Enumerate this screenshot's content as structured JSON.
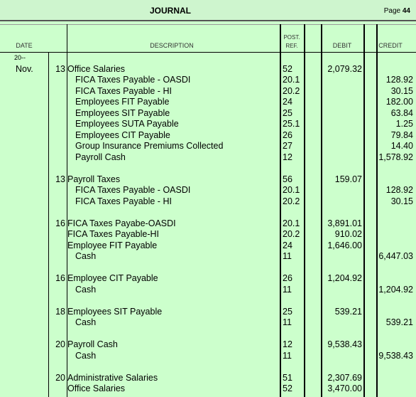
{
  "header": {
    "title": "JOURNAL",
    "page_label": "Page",
    "page_number": "44"
  },
  "columns": {
    "date": "DATE",
    "description": "DESCRIPTION",
    "post_ref_1": "POST.",
    "post_ref_2": "REF.",
    "debit": "DEBIT",
    "credit": "CREDIT"
  },
  "rows": [
    {
      "month": "20--",
      "day": "",
      "desc": "",
      "ref": "",
      "debit": "",
      "credit": ""
    },
    {
      "month": "Nov.",
      "day": "13",
      "desc": "Office Salaries",
      "ref": "52",
      "debit": "2,079.32",
      "credit": ""
    },
    {
      "month": "",
      "day": "",
      "desc": "FICA Taxes Payable - OASDI",
      "ref": "20.1",
      "debit": "",
      "credit": "128.92"
    },
    {
      "month": "",
      "day": "",
      "desc": "FICA Taxes Payable - HI",
      "ref": "20.2",
      "debit": "",
      "credit": "30.15"
    },
    {
      "month": "",
      "day": "",
      "desc": "Employees FIT Payable",
      "ref": "24",
      "debit": "",
      "credit": "182.00"
    },
    {
      "month": "",
      "day": "",
      "desc": "Employees SIT Payable",
      "ref": "25",
      "debit": "",
      "credit": "63.84"
    },
    {
      "month": "",
      "day": "",
      "desc": "Employees SUTA Payable",
      "ref": "25.1",
      "debit": "",
      "credit": "1.25"
    },
    {
      "month": "",
      "day": "",
      "desc": "Employees CIT Payable",
      "ref": "26",
      "debit": "",
      "credit": "79.84"
    },
    {
      "month": "",
      "day": "",
      "desc": "Group Insurance Premiums Collected",
      "ref": "27",
      "debit": "",
      "credit": "14.40"
    },
    {
      "month": "",
      "day": "",
      "desc": "Payroll Cash",
      "ref": "12",
      "debit": "",
      "credit": "1,578.92"
    },
    {
      "month": "",
      "day": "",
      "desc": "",
      "ref": "",
      "debit": "",
      "credit": ""
    },
    {
      "month": "",
      "day": "13",
      "desc": "Payroll Taxes",
      "ref": "56",
      "debit": "159.07",
      "credit": ""
    },
    {
      "month": "",
      "day": "",
      "desc": "FICA Taxes Payable - OASDI",
      "ref": "20.1",
      "debit": "",
      "credit": "128.92"
    },
    {
      "month": "",
      "day": "",
      "desc": "FICA Taxes Payable - HI",
      "ref": "20.2",
      "debit": "",
      "credit": "30.15"
    },
    {
      "month": "",
      "day": "",
      "desc": "",
      "ref": "",
      "debit": "",
      "credit": ""
    },
    {
      "month": "",
      "day": "16",
      "desc": "FICA Taxes Payabe-OASDI",
      "ref": "20.1",
      "debit": "3,891.01",
      "credit": ""
    },
    {
      "month": "",
      "day": "",
      "desc": "FICA Taxes Payable-HI",
      "ref": "20.2",
      "debit": "910.02",
      "credit": ""
    },
    {
      "month": "",
      "day": "",
      "desc": "Employee FIT Payable",
      "ref": "24",
      "debit": "1,646.00",
      "credit": ""
    },
    {
      "month": "",
      "day": "",
      "desc": "Cash",
      "ref": "11",
      "debit": "",
      "credit": "6,447.03"
    },
    {
      "month": "",
      "day": "",
      "desc": "",
      "ref": "",
      "debit": "",
      "credit": ""
    },
    {
      "month": "",
      "day": "16",
      "desc": "Employee CIT Payable",
      "ref": "26",
      "debit": "1,204.92",
      "credit": ""
    },
    {
      "month": "",
      "day": "",
      "desc": "Cash",
      "ref": "11",
      "debit": "",
      "credit": "1,204.92"
    },
    {
      "month": "",
      "day": "",
      "desc": "",
      "ref": "",
      "debit": "",
      "credit": ""
    },
    {
      "month": "",
      "day": "18",
      "desc": "Employees SIT Payable",
      "ref": "25",
      "debit": "539.21",
      "credit": ""
    },
    {
      "month": "",
      "day": "",
      "desc": "Cash",
      "ref": "11",
      "debit": "",
      "credit": "539.21"
    },
    {
      "month": "",
      "day": "",
      "desc": "",
      "ref": "",
      "debit": "",
      "credit": ""
    },
    {
      "month": "",
      "day": "20",
      "desc": "Payroll Cash",
      "ref": "12",
      "debit": "9,538.43",
      "credit": ""
    },
    {
      "month": "",
      "day": "",
      "desc": "Cash",
      "ref": "11",
      "debit": "",
      "credit": "9,538.43"
    },
    {
      "month": "",
      "day": "",
      "desc": "",
      "ref": "",
      "debit": "",
      "credit": ""
    },
    {
      "month": "",
      "day": "20",
      "desc": "Administrative Salaries",
      "ref": "51",
      "debit": "2,307.69",
      "credit": ""
    },
    {
      "month": "",
      "day": "",
      "desc": "Office Salaries",
      "ref": "52",
      "debit": "3,470.00",
      "credit": ""
    }
  ]
}
